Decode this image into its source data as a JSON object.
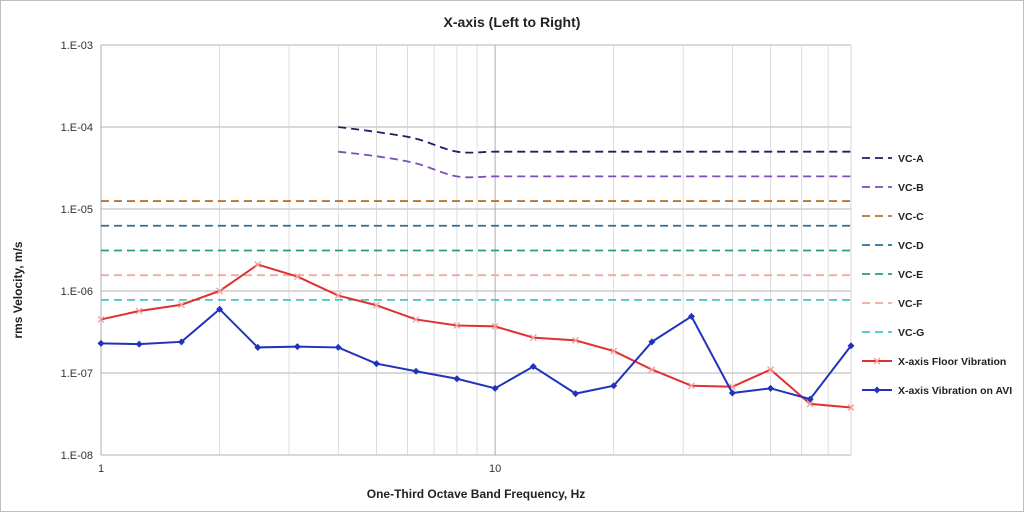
{
  "chart_data": {
    "type": "line",
    "title": "X-axis (Left to Right)",
    "xlabel": "One-Third Octave Band Frequency, Hz",
    "ylabel": "rms Velocity, m/s",
    "xscale": "log",
    "yscale": "log",
    "xlim": [
      1,
      80
    ],
    "ylim": [
      1e-08,
      0.001
    ],
    "x_tick_labels": [
      "1",
      "10"
    ],
    "y_tick_labels": [
      "1.E-08",
      "1.E-07",
      "1.E-06",
      "1.E-05",
      "1.E-04",
      "1.E-03"
    ],
    "grid": true,
    "legend_position": "right",
    "series": [
      {
        "name": "VC-A",
        "color": "#1f1f66",
        "style": "dashed",
        "marker": "none",
        "x": [
          4,
          5,
          6.3,
          8,
          10,
          12.5,
          16,
          20,
          25,
          31.5,
          40,
          50,
          63,
          80
        ],
        "y": [
          0.0001,
          8.7e-05,
          7.2e-05,
          5e-05,
          5e-05,
          5e-05,
          5e-05,
          5e-05,
          5e-05,
          5e-05,
          5e-05,
          5e-05,
          5e-05,
          5e-05
        ]
      },
      {
        "name": "VC-B",
        "color": "#7b4fb8",
        "style": "dashed",
        "marker": "none",
        "x": [
          4,
          5,
          6.3,
          8,
          10,
          12.5,
          16,
          20,
          25,
          31.5,
          40,
          50,
          63,
          80
        ],
        "y": [
          5e-05,
          4.4e-05,
          3.6e-05,
          2.5e-05,
          2.5e-05,
          2.5e-05,
          2.5e-05,
          2.5e-05,
          2.5e-05,
          2.5e-05,
          2.5e-05,
          2.5e-05,
          2.5e-05,
          2.5e-05
        ]
      },
      {
        "name": "VC-C",
        "color": "#c0702a",
        "style": "dashed",
        "marker": "none",
        "x": [
          1,
          80
        ],
        "y": [
          1.25e-05,
          1.25e-05
        ]
      },
      {
        "name": "VC-D",
        "color": "#2c6e9b",
        "style": "dashed",
        "marker": "none",
        "x": [
          1,
          80
        ],
        "y": [
          6.25e-06,
          6.25e-06
        ]
      },
      {
        "name": "VC-E",
        "color": "#27a06b",
        "style": "dashed",
        "marker": "none",
        "x": [
          1,
          80
        ],
        "y": [
          3.12e-06,
          3.12e-06
        ]
      },
      {
        "name": "VC-F",
        "color": "#f2a8a0",
        "style": "dashed",
        "marker": "none",
        "x": [
          1,
          80
        ],
        "y": [
          1.56e-06,
          1.56e-06
        ]
      },
      {
        "name": "VC-G",
        "color": "#45c7c4",
        "style": "dashed",
        "marker": "none",
        "x": [
          1,
          80
        ],
        "y": [
          7.8e-07,
          7.8e-07
        ]
      },
      {
        "name": "X-axis Floor Vibration",
        "color": "#e03030",
        "style": "solid",
        "marker": "x",
        "x": [
          1,
          1.25,
          1.6,
          2,
          2.5,
          3.15,
          4,
          5,
          6.3,
          8,
          10,
          12.5,
          16,
          20,
          25,
          31.5,
          40,
          50,
          63,
          80
        ],
        "y": [
          4.5e-07,
          5.7e-07,
          6.8e-07,
          1e-06,
          2.1e-06,
          1.5e-06,
          8.8e-07,
          6.7e-07,
          4.5e-07,
          3.8e-07,
          3.7e-07,
          2.7e-07,
          2.5e-07,
          1.85e-07,
          1.1e-07,
          7e-08,
          6.8e-08,
          1.1e-07,
          4.2e-08,
          3.8e-08
        ]
      },
      {
        "name": "X-axis Vibration on AVI",
        "color": "#2233bb",
        "style": "solid",
        "marker": "diamond",
        "x": [
          1,
          1.25,
          1.6,
          2,
          2.5,
          3.15,
          4,
          5,
          6.3,
          8,
          10,
          12.5,
          16,
          20,
          25,
          31.5,
          40,
          50,
          63,
          80
        ],
        "y": [
          2.3e-07,
          2.25e-07,
          2.4e-07,
          6e-07,
          2.05e-07,
          2.1e-07,
          2.05e-07,
          1.3e-07,
          1.05e-07,
          8.5e-08,
          6.5e-08,
          1.2e-07,
          5.6e-08,
          7e-08,
          2.4e-07,
          4.9e-07,
          5.7e-08,
          6.5e-08,
          4.8e-08,
          2.15e-07
        ]
      }
    ]
  }
}
